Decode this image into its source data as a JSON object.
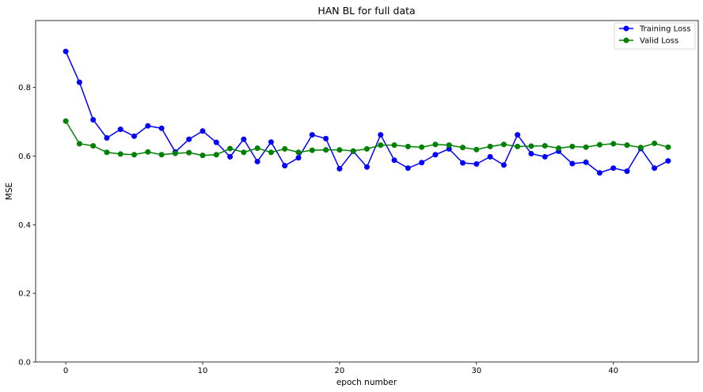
{
  "chart_data": {
    "type": "line",
    "title": "HAN BL for full data",
    "xlabel": "epoch number",
    "ylabel": "MSE",
    "xlim": [
      -2.2,
      46.2
    ],
    "ylim": [
      0,
      0.995
    ],
    "xticks": [
      0,
      10,
      20,
      30,
      40
    ],
    "yticks": [
      0.0,
      0.2,
      0.4,
      0.6,
      0.8
    ],
    "ytick_labels": [
      "0.0",
      "0.2",
      "0.4",
      "0.6",
      "0.8"
    ],
    "grid": false,
    "legend_position": "top-right",
    "x": [
      0,
      1,
      2,
      3,
      4,
      5,
      6,
      7,
      8,
      9,
      10,
      11,
      12,
      13,
      14,
      15,
      16,
      17,
      18,
      19,
      20,
      21,
      22,
      23,
      24,
      25,
      26,
      27,
      28,
      29,
      30,
      31,
      32,
      33,
      34,
      35,
      36,
      37,
      38,
      39,
      40,
      41,
      42,
      43,
      44
    ],
    "series": [
      {
        "name": "Training Loss",
        "color": "#0000ff",
        "marker": "circle",
        "values": [
          0.905,
          0.815,
          0.706,
          0.653,
          0.678,
          0.658,
          0.688,
          0.681,
          0.612,
          0.649,
          0.673,
          0.64,
          0.598,
          0.649,
          0.584,
          0.641,
          0.572,
          0.595,
          0.662,
          0.651,
          0.563,
          0.614,
          0.568,
          0.662,
          0.588,
          0.565,
          0.581,
          0.604,
          0.621,
          0.58,
          0.577,
          0.598,
          0.574,
          0.662,
          0.607,
          0.598,
          0.614,
          0.578,
          0.582,
          0.551,
          0.565,
          0.556,
          0.622,
          0.565,
          0.586
        ]
      },
      {
        "name": "Valid Loss",
        "color": "#008000",
        "marker": "circle",
        "values": [
          0.702,
          0.636,
          0.63,
          0.611,
          0.606,
          0.604,
          0.612,
          0.604,
          0.608,
          0.61,
          0.602,
          0.604,
          0.622,
          0.611,
          0.623,
          0.611,
          0.621,
          0.611,
          0.617,
          0.618,
          0.618,
          0.615,
          0.621,
          0.632,
          0.632,
          0.628,
          0.626,
          0.634,
          0.632,
          0.625,
          0.619,
          0.628,
          0.634,
          0.628,
          0.629,
          0.63,
          0.623,
          0.628,
          0.626,
          0.633,
          0.636,
          0.632,
          0.625,
          0.637,
          0.626
        ]
      }
    ]
  }
}
